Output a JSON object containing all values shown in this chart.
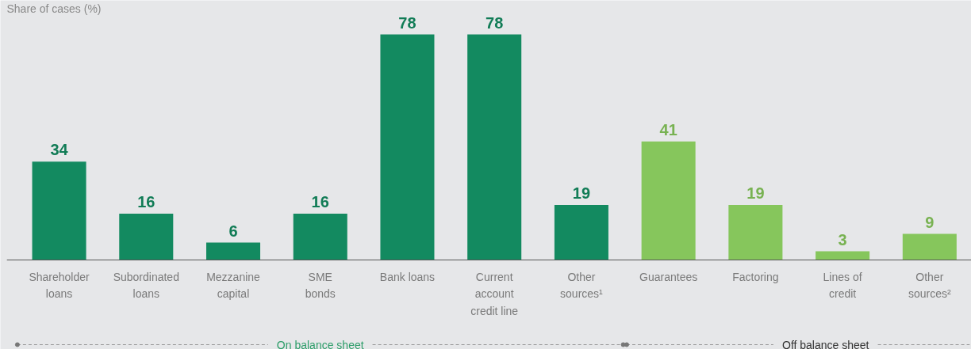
{
  "chart_data": {
    "type": "bar",
    "ylabel": "Share of cases (%)",
    "categories": [
      "Shareholder\nloans",
      "Subordinated\nloans",
      "Mezzanine\ncapital",
      "SME\nbonds",
      "Bank loans",
      "Current\naccount\ncredit line",
      "Other\nsources¹",
      "Guarantees",
      "Factoring",
      "Lines of\ncredit",
      "Other\nsources²"
    ],
    "values": [
      34,
      16,
      6,
      16,
      78,
      78,
      19,
      41,
      19,
      3,
      9
    ],
    "colors": [
      "#138a60",
      "#138a60",
      "#138a60",
      "#138a60",
      "#138a60",
      "#138a60",
      "#138a60",
      "#86c65c",
      "#86c65c",
      "#86c65c",
      "#86c65c"
    ],
    "data_labels": true,
    "annotations": [
      "On balance sheet",
      "Off balance sheet"
    ]
  }
}
